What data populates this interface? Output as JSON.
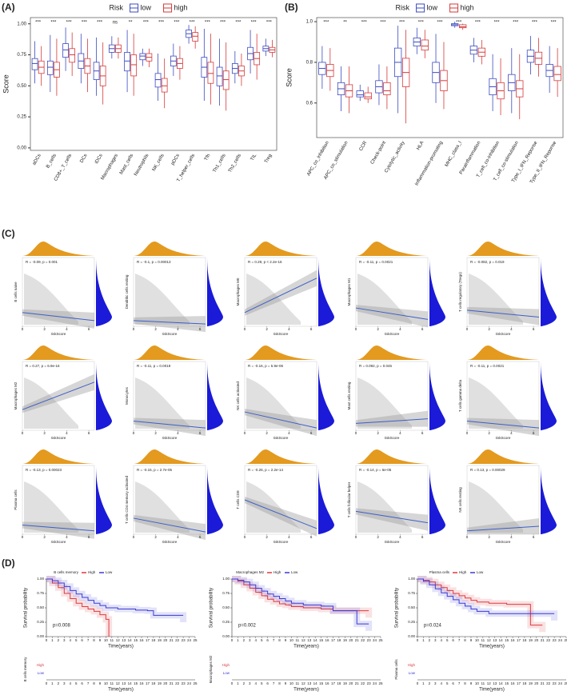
{
  "chart_data": [
    {
      "type": "box",
      "panel_label": "(A)",
      "legend_title": "Risk",
      "ylabel": "Score",
      "ylim": [
        -0.02,
        1.05
      ],
      "yticks": [
        {
          "value": 0,
          "label": "0.00"
        },
        {
          "value": 0.25,
          "label": "0.25"
        },
        {
          "value": 0.5,
          "label": "0.50"
        },
        {
          "value": 0.75,
          "label": "0.75"
        },
        {
          "value": 1,
          "label": "1.00"
        }
      ],
      "categories": [
        "aDCs",
        "B_cells",
        "CD8+_T_cells",
        "DCs",
        "iDCs",
        "Macrophages",
        "Mast_cells",
        "Neutrophils",
        "NK_cells",
        "pDCs",
        "T_helper_cells",
        "Tfh",
        "Th1_cells",
        "Th2_cells",
        "TIL",
        "Treg"
      ],
      "significance": [
        "***",
        "***",
        "***",
        "***",
        "***",
        "ns",
        "**",
        "***",
        "***",
        "***",
        "***",
        "***",
        "***",
        "***",
        "***",
        "***"
      ],
      "series": [
        {
          "name": "low",
          "color": "#3b4cc0",
          "median": [
            0.68,
            0.65,
            0.79,
            0.7,
            0.62,
            0.8,
            0.7,
            0.74,
            0.55,
            0.7,
            0.92,
            0.65,
            0.58,
            0.64,
            0.76,
            0.8
          ],
          "q1": [
            0.63,
            0.59,
            0.73,
            0.64,
            0.55,
            0.77,
            0.62,
            0.71,
            0.49,
            0.66,
            0.89,
            0.57,
            0.5,
            0.6,
            0.71,
            0.78
          ],
          "q3": [
            0.72,
            0.7,
            0.84,
            0.76,
            0.69,
            0.83,
            0.77,
            0.76,
            0.6,
            0.74,
            0.95,
            0.73,
            0.65,
            0.68,
            0.81,
            0.82
          ],
          "lower": [
            0.52,
            0.45,
            0.62,
            0.52,
            0.42,
            0.72,
            0.45,
            0.66,
            0.38,
            0.58,
            0.84,
            0.38,
            0.34,
            0.52,
            0.6,
            0.74
          ],
          "upper": [
            0.86,
            0.91,
            0.97,
            0.92,
            0.89,
            0.9,
            0.95,
            0.8,
            0.76,
            0.84,
            0.99,
            0.96,
            0.88,
            0.78,
            0.95,
            0.88
          ]
        },
        {
          "name": "high",
          "color": "#d63a3a",
          "median": [
            0.65,
            0.63,
            0.75,
            0.66,
            0.58,
            0.8,
            0.67,
            0.73,
            0.5,
            0.68,
            0.9,
            0.6,
            0.55,
            0.62,
            0.72,
            0.79
          ],
          "q1": [
            0.6,
            0.57,
            0.69,
            0.6,
            0.5,
            0.77,
            0.58,
            0.7,
            0.45,
            0.64,
            0.86,
            0.52,
            0.47,
            0.58,
            0.67,
            0.77
          ],
          "q3": [
            0.7,
            0.69,
            0.8,
            0.72,
            0.66,
            0.83,
            0.75,
            0.76,
            0.56,
            0.72,
            0.93,
            0.69,
            0.62,
            0.66,
            0.77,
            0.81
          ],
          "lower": [
            0.5,
            0.42,
            0.58,
            0.45,
            0.35,
            0.72,
            0.42,
            0.65,
            0.32,
            0.55,
            0.8,
            0.35,
            0.3,
            0.5,
            0.55,
            0.73
          ],
          "upper": [
            0.82,
            0.88,
            0.93,
            0.88,
            0.85,
            0.89,
            0.92,
            0.8,
            0.72,
            0.82,
            0.98,
            0.92,
            0.85,
            0.76,
            0.92,
            0.87
          ]
        }
      ]
    },
    {
      "type": "box",
      "panel_label": "(B)",
      "legend_title": "Risk",
      "ylabel": "Score",
      "ylim": [
        0.43,
        1.02
      ],
      "yticks": [
        0.6,
        0.8,
        {
          "value": 1,
          "label": "1.0"
        }
      ],
      "categories": [
        "APC_co_inhibition",
        "APC_co_stimulation",
        "CCR",
        "Check-point",
        "Cytolytic_activity",
        "HLA",
        "Inflammation-promoting",
        "MHC_class_I",
        "Parainflammation",
        "T_cell_co-inhibition",
        "T_cell_co-stimulation",
        "Type_I_IFN_Reponse",
        "Type_II_IFN_Reponse"
      ],
      "significance": [
        "***",
        "**",
        "***",
        "***",
        "***",
        "***",
        "***",
        "***",
        "***",
        "***",
        "***",
        "***",
        "***"
      ],
      "series": [
        {
          "name": "low",
          "color": "#3b4cc0",
          "median": [
            0.77,
            0.67,
            0.64,
            0.68,
            0.8,
            0.9,
            0.75,
            0.985,
            0.86,
            0.68,
            0.7,
            0.83,
            0.76
          ],
          "q1": [
            0.74,
            0.64,
            0.63,
            0.65,
            0.73,
            0.88,
            0.7,
            0.98,
            0.84,
            0.64,
            0.66,
            0.8,
            0.73
          ],
          "q3": [
            0.8,
            0.7,
            0.66,
            0.71,
            0.87,
            0.92,
            0.8,
            0.99,
            0.88,
            0.72,
            0.74,
            0.86,
            0.79
          ],
          "lower": [
            0.67,
            0.56,
            0.61,
            0.59,
            0.55,
            0.84,
            0.6,
            0.97,
            0.8,
            0.56,
            0.55,
            0.74,
            0.65
          ],
          "upper": [
            0.88,
            0.78,
            0.69,
            0.79,
            0.98,
            0.97,
            0.94,
            1.0,
            0.92,
            0.84,
            0.87,
            0.93,
            0.88
          ]
        },
        {
          "name": "high",
          "color": "#d63a3a",
          "median": [
            0.76,
            0.66,
            0.63,
            0.66,
            0.75,
            0.88,
            0.71,
            0.975,
            0.85,
            0.66,
            0.67,
            0.82,
            0.74
          ],
          "q1": [
            0.73,
            0.63,
            0.62,
            0.64,
            0.68,
            0.86,
            0.66,
            0.97,
            0.83,
            0.62,
            0.63,
            0.79,
            0.71
          ],
          "q3": [
            0.79,
            0.69,
            0.65,
            0.7,
            0.82,
            0.91,
            0.76,
            0.985,
            0.87,
            0.7,
            0.71,
            0.85,
            0.78
          ],
          "lower": [
            0.66,
            0.55,
            0.6,
            0.57,
            0.5,
            0.82,
            0.57,
            0.96,
            0.79,
            0.54,
            0.52,
            0.73,
            0.63
          ],
          "upper": [
            0.87,
            0.78,
            0.68,
            0.78,
            0.96,
            0.96,
            0.9,
            0.99,
            0.91,
            0.82,
            0.84,
            0.92,
            0.87
          ]
        }
      ]
    },
    {
      "type": "scatter",
      "panel_label": "(C)",
      "xlabel": "riskScore",
      "xticks": [
        0,
        2,
        4,
        6
      ],
      "xlim": [
        0,
        6.5
      ],
      "plots": [
        {
          "ylabel": "B cells naive",
          "stat": "R = -0.09, p = 0.001",
          "ylim": [
            0,
            0.6
          ],
          "fit": [
            0.12,
            0.05
          ]
        },
        {
          "ylabel": "Dendritic cells resting",
          "stat": "R = -0.1, p = 0.00013",
          "ylim": [
            0,
            0.6
          ],
          "fit": [
            0.05,
            0.02
          ]
        },
        {
          "ylabel": "Macrophages M0",
          "stat": "R = 0.29, p < 2.2e-16",
          "ylim": [
            0,
            0.6
          ],
          "fit": [
            0.12,
            0.42
          ]
        },
        {
          "ylabel": "Macrophages M1",
          "stat": "R = -0.11, p = 0.0021",
          "ylim": [
            0,
            0.6
          ],
          "fit": [
            0.16,
            0.06
          ]
        },
        {
          "ylabel": "T cells regulatory (Tregs)",
          "stat": "R = -0.082, p = 0.019",
          "ylim": [
            0,
            0.6
          ],
          "fit": [
            0.14,
            0.08
          ]
        },
        {
          "ylabel": "Macrophages M2",
          "stat": "R = 0.27, p = 6.9e-16",
          "ylim": [
            0,
            0.6
          ],
          "fit": [
            0.18,
            0.42
          ]
        },
        {
          "ylabel": "Monocytes",
          "stat": "R = -0.11, p = 0.0019",
          "ylim": [
            0,
            0.6
          ],
          "fit": [
            0.08,
            0.02
          ]
        },
        {
          "ylabel": "NK cells activated",
          "stat": "R = -0.16, p = 5.9e-06",
          "ylim": [
            0,
            0.6
          ],
          "fit": [
            0.16,
            0.02
          ]
        },
        {
          "ylabel": "Mast cells resting",
          "stat": "R = 0.092, p = 0.045",
          "ylim": [
            0,
            0.6
          ],
          "fit": [
            0.06,
            0.1
          ]
        },
        {
          "ylabel": "T cells gamma delta",
          "stat": "R = -0.11, p = 0.0021",
          "ylim": [
            0,
            0.6
          ],
          "fit": [
            0.08,
            0.02
          ]
        },
        {
          "ylabel": "Plasma cells",
          "stat": "R = -0.13, p = 0.00023",
          "ylim": [
            0,
            0.6
          ],
          "fit": [
            0.08,
            0.03
          ]
        },
        {
          "ylabel": "T cells CD4 memory activated",
          "stat": "R = -0.15, p = 2.7e-05",
          "ylim": [
            0,
            0.6
          ],
          "fit": [
            0.14,
            0.02
          ]
        },
        {
          "ylabel": "T cells CD8",
          "stat": "R = -0.26, p = 2.2e-14",
          "ylim": [
            0,
            0.6
          ],
          "fit": [
            0.3,
            0.05
          ]
        },
        {
          "ylabel": "T cells follicular helper",
          "stat": "R = -0.14, p = 6e-05",
          "ylim": [
            0,
            0.6
          ],
          "fit": [
            0.2,
            0.1
          ]
        },
        {
          "ylabel": "NK cells resting",
          "stat": "R = 0.13, p = 0.00029",
          "ylim": [
            0,
            0.6
          ],
          "fit": [
            0.03,
            0.07
          ]
        }
      ]
    },
    {
      "type": "km",
      "panel_label": "(D)",
      "ylabel": "Survival probability",
      "xlabel": "Time(years)",
      "xlim": [
        0,
        25
      ],
      "ylim": [
        0,
        1
      ],
      "xticks": [
        0,
        1,
        2,
        3,
        4,
        5,
        6,
        7,
        8,
        9,
        10,
        11,
        12,
        13,
        14,
        15,
        16,
        17,
        18,
        19,
        20,
        21,
        22,
        23,
        24,
        25
      ],
      "yticks": [
        {
          "value": 0,
          "label": "0.00"
        },
        {
          "value": 0.25,
          "label": "0.25"
        },
        {
          "value": 0.5,
          "label": "0.50"
        },
        {
          "value": 0.75,
          "label": "0.75"
        },
        {
          "value": 1,
          "label": "1.00"
        }
      ],
      "plots": [
        {
          "legend_title": "B cells memory",
          "p_text": "p=0.008",
          "series": [
            {
              "name": "High",
              "color": "#e0393e",
              "x": [
                0,
                1,
                2,
                3,
                4,
                5,
                6,
                7,
                8,
                9,
                10,
                10.5
              ],
              "values": [
                1,
                0.93,
                0.85,
                0.75,
                0.66,
                0.58,
                0.52,
                0.48,
                0.44,
                0.38,
                0.3,
                0
              ]
            },
            {
              "name": "Low",
              "color": "#3a3ad6",
              "x": [
                0,
                1,
                2,
                3,
                4,
                5,
                6,
                7,
                8,
                9,
                10,
                12,
                15,
                17,
                18,
                23
              ],
              "values": [
                1,
                0.97,
                0.93,
                0.87,
                0.8,
                0.74,
                0.68,
                0.63,
                0.58,
                0.54,
                0.5,
                0.48,
                0.46,
                0.45,
                0.37,
                0.37
              ]
            }
          ]
        },
        {
          "legend_title": "Macrophages M2",
          "p_text": "p=0.002",
          "series": [
            {
              "name": "High",
              "color": "#e0393e",
              "x": [
                0,
                1,
                2,
                3,
                4,
                5,
                6,
                7,
                8,
                9,
                10,
                12,
                15,
                17,
                21,
                23
              ],
              "values": [
                1,
                0.96,
                0.9,
                0.84,
                0.77,
                0.71,
                0.65,
                0.61,
                0.57,
                0.55,
                0.52,
                0.5,
                0.48,
                0.45,
                0.45,
                0.45
              ]
            },
            {
              "name": "Low",
              "color": "#3a3ad6",
              "x": [
                0,
                1,
                2,
                3,
                4,
                5,
                6,
                7,
                8,
                9,
                10,
                12,
                15,
                17,
                21,
                23
              ],
              "values": [
                1,
                0.98,
                0.95,
                0.9,
                0.84,
                0.79,
                0.74,
                0.7,
                0.66,
                0.62,
                0.58,
                0.55,
                0.53,
                0.45,
                0.22,
                0.22
              ]
            }
          ]
        },
        {
          "legend_title": "Plasma cells",
          "p_text": "p=0.024",
          "series": [
            {
              "name": "High",
              "color": "#e0393e",
              "x": [
                0,
                1,
                2,
                3,
                4,
                5,
                6,
                7,
                8,
                9,
                10,
                12,
                15,
                18,
                19,
                21
              ],
              "values": [
                1,
                0.98,
                0.95,
                0.9,
                0.85,
                0.8,
                0.75,
                0.71,
                0.67,
                0.63,
                0.6,
                0.58,
                0.56,
                0.56,
                0.2,
                0.2
              ]
            },
            {
              "name": "Low",
              "color": "#3a3ad6",
              "x": [
                0,
                1,
                2,
                3,
                4,
                5,
                6,
                7,
                8,
                9,
                10,
                12,
                15,
                18,
                23
              ],
              "values": [
                1,
                0.96,
                0.9,
                0.83,
                0.76,
                0.7,
                0.64,
                0.58,
                0.53,
                0.48,
                0.44,
                0.4,
                0.4,
                0.4,
                0.4
              ]
            }
          ]
        }
      ]
    }
  ]
}
